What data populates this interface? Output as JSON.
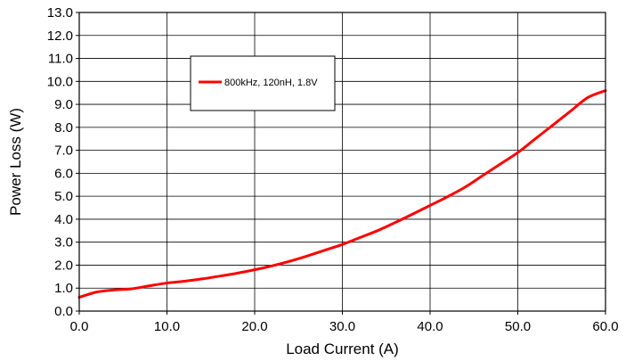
{
  "chart_data": {
    "type": "line",
    "xlabel": "Load Current (A)",
    "ylabel": "Power Loss (W)",
    "xlim": [
      0,
      60
    ],
    "ylim": [
      0,
      13
    ],
    "x_ticks": [
      "0.0",
      "10.0",
      "20.0",
      "30.0",
      "40.0",
      "50.0",
      "60.0"
    ],
    "y_ticks": [
      "0.0",
      "1.0",
      "2.0",
      "3.0",
      "4.0",
      "5.0",
      "6.0",
      "7.0",
      "8.0",
      "9.0",
      "10.0",
      "11.0",
      "12.0",
      "13.0"
    ],
    "grid": true,
    "legend_position": "upper-left",
    "series": [
      {
        "name": "800kHz, 120nH, 1.8V",
        "color": "#ff0000",
        "x": [
          0,
          2,
          4,
          6,
          8,
          10,
          12,
          14,
          16,
          18,
          20,
          22,
          24,
          26,
          28,
          30,
          32,
          34,
          36,
          38,
          40,
          42,
          44,
          46,
          48,
          50,
          52,
          54,
          56,
          58,
          60
        ],
        "y": [
          0.6,
          0.83,
          0.92,
          0.97,
          1.1,
          1.22,
          1.3,
          1.4,
          1.52,
          1.65,
          1.8,
          1.97,
          2.17,
          2.4,
          2.65,
          2.9,
          3.2,
          3.5,
          3.85,
          4.22,
          4.6,
          4.98,
          5.4,
          5.9,
          6.4,
          6.9,
          7.5,
          8.1,
          8.7,
          9.3,
          9.6
        ]
      }
    ]
  }
}
